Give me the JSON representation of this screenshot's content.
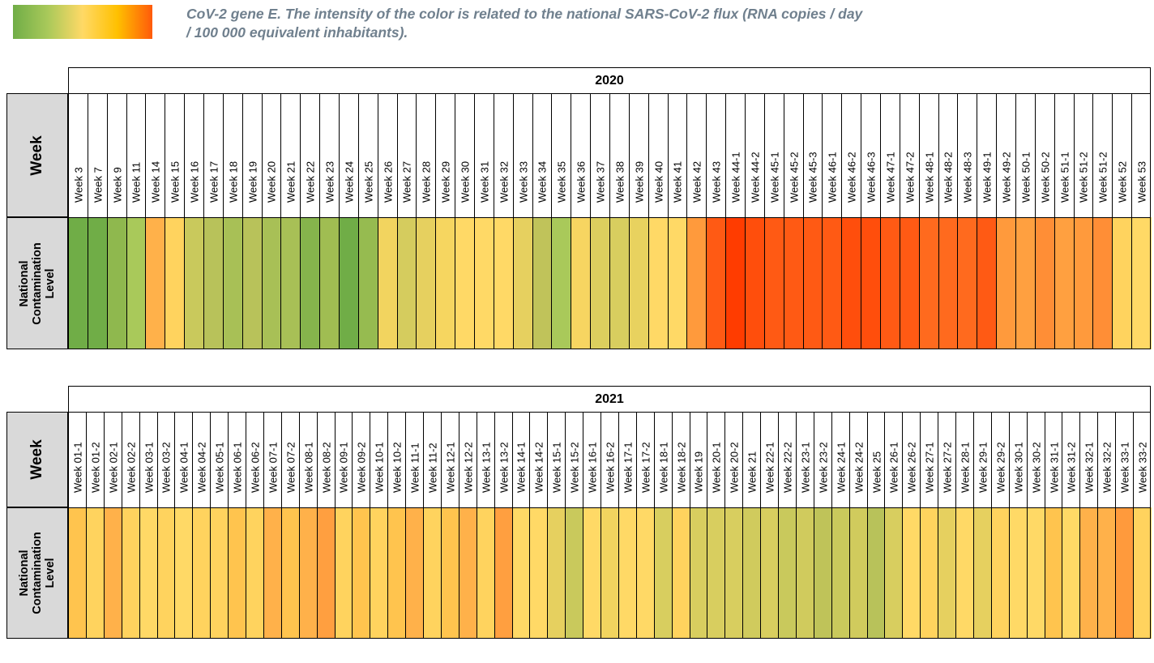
{
  "legend": {
    "caption": "CoV-2 gene E. The intensity of the color is related to the national SARS-CoV-2 flux (RNA copies / day\n/ 100 000 equivalent inhabitants).",
    "gradient": [
      "#70ad47",
      "#a9c95a",
      "#ffd966",
      "#ffc000",
      "#ff5a0a"
    ]
  },
  "chart_data": [
    {
      "type": "heatmap",
      "title": "2020",
      "row_labels": [
        "Week",
        "National\nContamination\nLevel"
      ],
      "categories": [
        "Week 3",
        "Week 7",
        "Week 9",
        "Week 11",
        "Week 14",
        "Week 15",
        "Week 16",
        "Week 17",
        "Week 18",
        "Week 19",
        "Week 20",
        "Week 21",
        "Week 22",
        "Week 23",
        "Week 24",
        "Week 25",
        "Week 26",
        "Week 27",
        "Week 28",
        "Week 29",
        "Week 30",
        "Week 31",
        "Week 32",
        "Week 33",
        "Week 34",
        "Week 35",
        "Week 36",
        "Week 37",
        "Week 38",
        "Week 39",
        "Week 40",
        "Week 41",
        "Week 42",
        "Week 43",
        "Week 44-1",
        "Week 44-2",
        "Week 45-1",
        "Week 45-2",
        "Week 45-3",
        "Week 46-1",
        "Week 46-2",
        "Week 46-3",
        "Week 47-1",
        "Week 47-2",
        "Week 48-1",
        "Week 48-2",
        "Week 48-3",
        "Week 49-1",
        "Week 49-2",
        "Week 50-1",
        "Week 50-2",
        "Week 51-1",
        "Week 51-2",
        "Week 51-2",
        "Week 52",
        "Week 53"
      ],
      "colors": [
        "#70ad47",
        "#70ad47",
        "#8fb84e",
        "#a9c95a",
        "#ffb14a",
        "#ffd35e",
        "#c9c95c",
        "#b8c25a",
        "#a8c056",
        "#b8c25a",
        "#a8c056",
        "#a8c056",
        "#86b44c",
        "#a0bd52",
        "#70ad47",
        "#96bb50",
        "#f2d45f",
        "#d5cc5e",
        "#e6d05f",
        "#f6d660",
        "#ffd966",
        "#ffd966",
        "#ffd966",
        "#e6d05f",
        "#c0c35a",
        "#a9c95a",
        "#f7d561",
        "#dccf5e",
        "#d8ce5f",
        "#e8d25f",
        "#ffd966",
        "#ffd966",
        "#ff9a3c",
        "#ff5a14",
        "#ff3c00",
        "#ff4e0c",
        "#ff5a14",
        "#ff5a14",
        "#ff5a14",
        "#ff5a14",
        "#ff4e0c",
        "#ff4e0c",
        "#ff5a14",
        "#ff5a14",
        "#ff6a1e",
        "#ff6a1e",
        "#ff6a1e",
        "#ff5a14",
        "#ff9a3c",
        "#ffa040",
        "#ff8e36",
        "#ffa040",
        "#ff9a3c",
        "#ff8e36",
        "#ffd35e",
        "#ffd966"
      ]
    },
    {
      "type": "heatmap",
      "title": "2021",
      "row_labels": [
        "Week",
        "National\nContamination\nLevel"
      ],
      "categories": [
        "Week 01-1",
        "Week 01-2",
        "Week 02-1",
        "Week 02-2",
        "Week 03-1",
        "Week 03-2",
        "Week 04-1",
        "Week 04-2",
        "Week 05-1",
        "Week 06-1",
        "Week 06-2",
        "Week 07-1",
        "Week 07-2",
        "Week 08-1",
        "Week 08-2",
        "Week 09-1",
        "Week 09-2",
        "Week 10-1",
        "Week 10-2",
        "Week 11-1",
        "Week 11-2",
        "Week 12-1",
        "Week 12-2",
        "Week 13-1",
        "Week 13-2",
        "Week 14-1",
        "Week 14-2",
        "Week 15-1",
        "Week 15-2",
        "Week 16-1",
        "Week 16-2",
        "Week 17-1",
        "Week 17-2",
        "Week 18-1",
        "Week 18-2",
        "Week 19",
        "Week 20-1",
        "Week 20-2",
        "Week 21",
        "Week 22-1",
        "Week 22-2",
        "Week 23-1",
        "Week 23-2",
        "Week 24-1",
        "Week 24-2",
        "Week 25",
        "Week 26-1",
        "Week 26-2",
        "Week 27-1",
        "Week 27-2",
        "Week 28-1",
        "Week 29-1",
        "Week 29-2",
        "Week 30-1",
        "Week 30-2",
        "Week 31-1",
        "Week 31-2",
        "Week 32-1",
        "Week 32-2",
        "Week 33-1",
        "Week 33-2"
      ],
      "colors": [
        "#ffc44e",
        "#ffd35e",
        "#ffb14a",
        "#ffd35e",
        "#ffd966",
        "#ffd35e",
        "#ffd966",
        "#ffd35e",
        "#ffd35e",
        "#ffc44e",
        "#ffd35e",
        "#ffb14a",
        "#ffc44e",
        "#ffb14a",
        "#ff9f40",
        "#ffd35e",
        "#ffc44e",
        "#ffd35e",
        "#ffc44e",
        "#ffb14a",
        "#ffd35e",
        "#ffc44e",
        "#ffb14a",
        "#ffd35e",
        "#ff9f40",
        "#ffd966",
        "#ffd966",
        "#e6d05f",
        "#c9c95c",
        "#ffd966",
        "#f2d45f",
        "#ffd966",
        "#ffd966",
        "#d8ce5f",
        "#ffd35e",
        "#d8ce5f",
        "#d8ce5f",
        "#d8ce5f",
        "#d0cb5d",
        "#d8ce5f",
        "#c9c95c",
        "#d0cb5d",
        "#bfc359",
        "#c9c95c",
        "#d0cb5d",
        "#b8c25a",
        "#d8ce5f",
        "#ffd966",
        "#ffd35e",
        "#e6d05f",
        "#ffd966",
        "#e6d05f",
        "#ffd35e",
        "#ffd966",
        "#ffd966",
        "#ffc44e",
        "#ffd966",
        "#ffb14a",
        "#ffb14a",
        "#ff9a3c",
        "#ffd35e"
      ]
    }
  ]
}
